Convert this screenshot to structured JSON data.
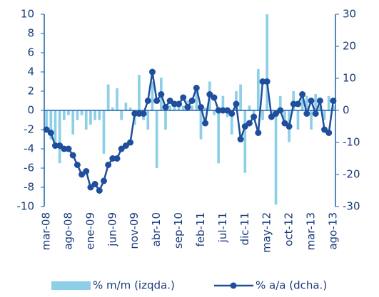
{
  "chart_data": {
    "type": "bar-line",
    "categories": [
      "mar-08",
      null,
      null,
      null,
      null,
      "ago-08",
      null,
      null,
      null,
      null,
      "ene-09",
      null,
      null,
      null,
      null,
      "jun-09",
      null,
      null,
      null,
      null,
      "nov-09",
      null,
      null,
      null,
      null,
      "abr-10",
      null,
      null,
      null,
      null,
      "sep-10",
      null,
      null,
      null,
      null,
      "feb-11",
      null,
      null,
      null,
      null,
      "jul-11",
      null,
      null,
      null,
      null,
      "dic-11",
      null,
      null,
      null,
      null,
      "may-12",
      null,
      null,
      null,
      null,
      "oct-12",
      null,
      null,
      null,
      null,
      "mar-13",
      null,
      null,
      null,
      null,
      "ago-13"
    ],
    "series": [
      {
        "name": "% m/m (izqda.)",
        "type": "bar",
        "color": "#8ecfe8",
        "values": [
          -2,
          -3,
          -4,
          -5.5,
          -1,
          -0.5,
          -2.5,
          -1,
          -0.5,
          -2,
          -1.5,
          -1,
          -1,
          -4.5,
          2.7,
          0.3,
          2.3,
          -1,
          0.8,
          0.3,
          -1.5,
          3.7,
          -1,
          -2,
          3,
          -6,
          3.4,
          -2,
          0.5,
          0.3,
          0.8,
          0.5,
          1,
          0.5,
          2,
          -3,
          0.3,
          3,
          -0.5,
          -5.5,
          1.5,
          -0.7,
          -2.5,
          2,
          2.7,
          -6.5,
          0.5,
          -0.5,
          4.3,
          -1,
          10,
          -0.5,
          -9.8,
          1.5,
          -1,
          -3.3,
          2,
          -2,
          1.7,
          1.5,
          -2,
          1.7,
          0.5,
          -1,
          1.5,
          0.5
        ]
      },
      {
        "name": "% a/a (dcha.)",
        "type": "line",
        "axis": "y2",
        "color": "#1f4e9c",
        "values": [
          -6,
          -7,
          -11,
          -11,
          -12,
          -12,
          -14,
          -17,
          -20,
          -19,
          -24,
          -23,
          -25,
          -22,
          -17,
          -15,
          -15,
          -12,
          -11,
          -10,
          -1,
          -1,
          -1,
          3,
          12,
          3,
          5,
          1,
          3,
          2,
          2,
          4,
          1,
          3,
          7,
          1,
          -4,
          5,
          4,
          0,
          0,
          0,
          -1,
          2,
          -9,
          -5,
          -4,
          -2,
          -7,
          9,
          9,
          -2,
          -1,
          0,
          -4,
          -5,
          2,
          2,
          5,
          -1,
          3,
          -1,
          3,
          -6,
          -7,
          3
        ]
      }
    ],
    "ylim": [
      -10,
      10
    ],
    "yticks": [
      -10,
      -8,
      -6,
      -4,
      -2,
      0,
      2,
      4,
      6,
      8,
      10
    ],
    "y2lim": [
      -30,
      30
    ],
    "y2ticks": [
      -30,
      -20,
      -10,
      0,
      10,
      20,
      30
    ]
  }
}
